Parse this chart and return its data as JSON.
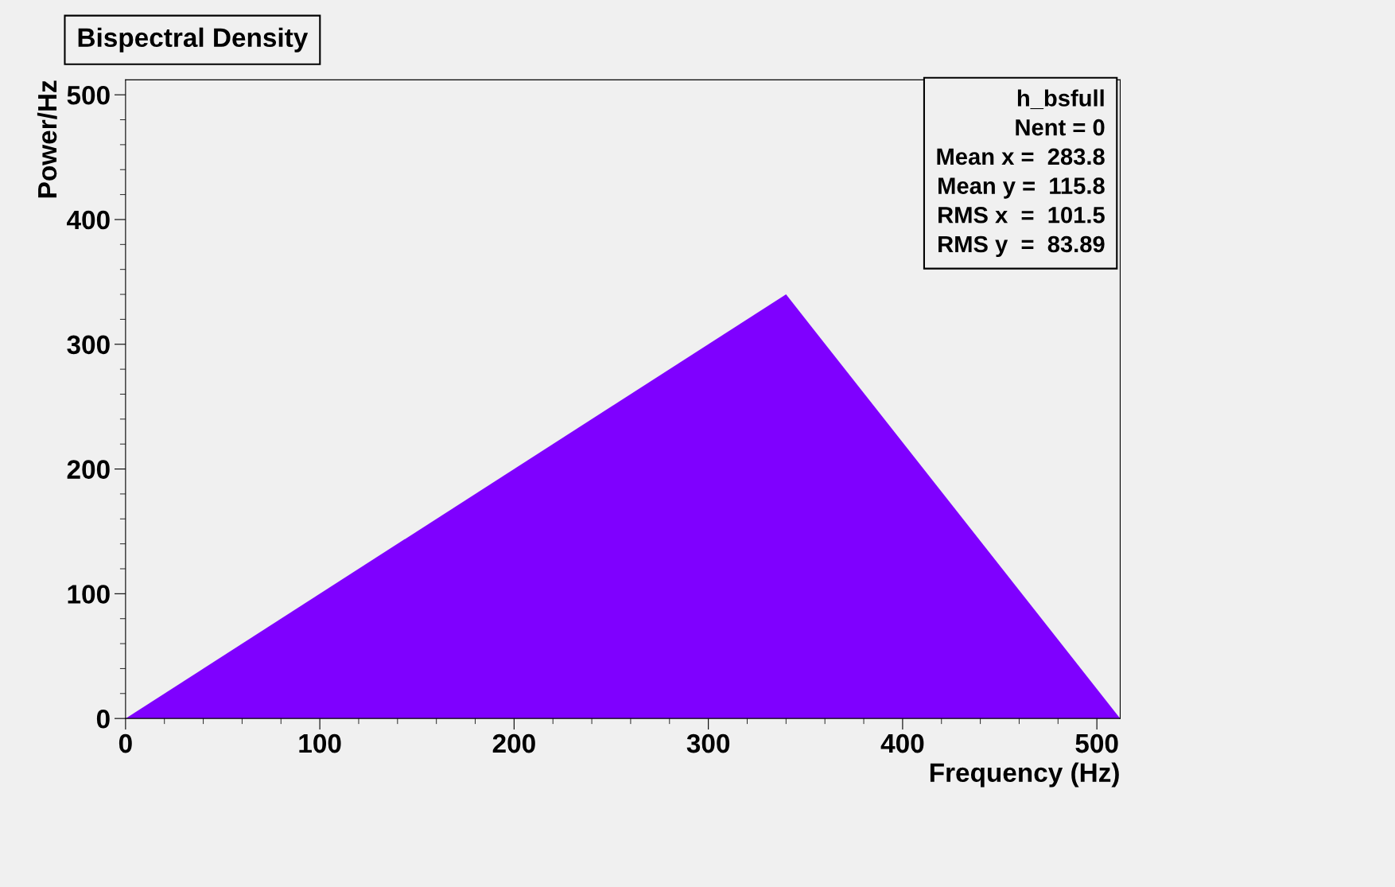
{
  "chart_data": {
    "type": "area",
    "title": "Bispectral Density",
    "xlabel": "Frequency (Hz)",
    "ylabel": "Power/Hz",
    "annotations": [
      "h_bsfull",
      "Nent = 0",
      "Mean x =  283.8",
      "Mean y =  115.8",
      "RMS x  =  101.5",
      "RMS y  =  83.89"
    ],
    "xlim": [
      0,
      512
    ],
    "ylim": [
      0,
      512
    ],
    "xticks": [
      0,
      100,
      200,
      300,
      400,
      500
    ],
    "yticks": [
      0,
      100,
      200,
      300,
      400,
      500
    ],
    "x": [
      0,
      340,
      512
    ],
    "series": [
      {
        "color": "#7f00ff",
        "values": [
          0,
          340,
          0
        ]
      }
    ]
  }
}
